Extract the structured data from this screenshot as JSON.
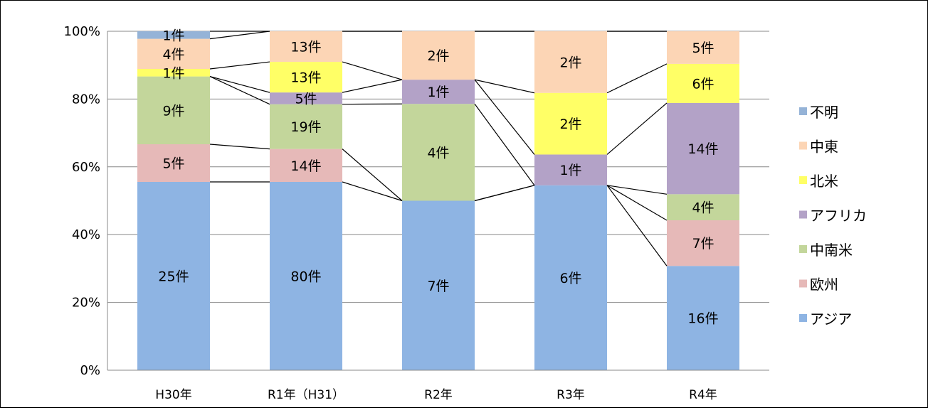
{
  "chart_data": {
    "type": "bar",
    "stacked": "percent",
    "categories": [
      "H30年",
      "R1年（H31）",
      "R2年",
      "R3年",
      "R4年"
    ],
    "ylim": [
      0,
      100
    ],
    "yticks": [
      "0%",
      "20%",
      "40%",
      "60%",
      "80%",
      "100%"
    ],
    "grid": true,
    "legend_position": "right",
    "series": [
      {
        "name": "アジア",
        "color": "#8EB4E3",
        "values": [
          25,
          80,
          7,
          6,
          16
        ],
        "labels": [
          "25件",
          "80件",
          "7件",
          "6件",
          "16件"
        ]
      },
      {
        "name": "欧州",
        "color": "#E6B9B8",
        "values": [
          5,
          14,
          0,
          0,
          7
        ],
        "labels": [
          "5件",
          "14件",
          "",
          "",
          "7件"
        ]
      },
      {
        "name": "中南米",
        "color": "#C3D69B",
        "values": [
          9,
          19,
          4,
          0,
          4
        ],
        "labels": [
          "9件",
          "19件",
          "4件",
          "",
          "4件"
        ]
      },
      {
        "name": "アフリカ",
        "color": "#B3A2C7",
        "values": [
          0,
          5,
          1,
          1,
          14
        ],
        "labels": [
          "",
          "5件",
          "1件",
          "1件",
          "14件"
        ]
      },
      {
        "name": "北米",
        "color": "#FFFF66",
        "values": [
          1,
          13,
          0,
          2,
          6
        ],
        "labels": [
          "1件",
          "13件",
          "",
          "2件",
          "6件"
        ]
      },
      {
        "name": "中東",
        "color": "#FCD5B5",
        "values": [
          4,
          13,
          2,
          2,
          5
        ],
        "labels": [
          "4件",
          "13件",
          "2件",
          "2件",
          "5件"
        ]
      },
      {
        "name": "不明",
        "color": "#95B3D7",
        "values": [
          1,
          0,
          0,
          0,
          0
        ],
        "labels": [
          "1件",
          "",
          "",
          "",
          ""
        ]
      }
    ],
    "legend_order": [
      "不明",
      "中東",
      "北米",
      "アフリカ",
      "中南米",
      "欧州",
      "アジア"
    ]
  }
}
